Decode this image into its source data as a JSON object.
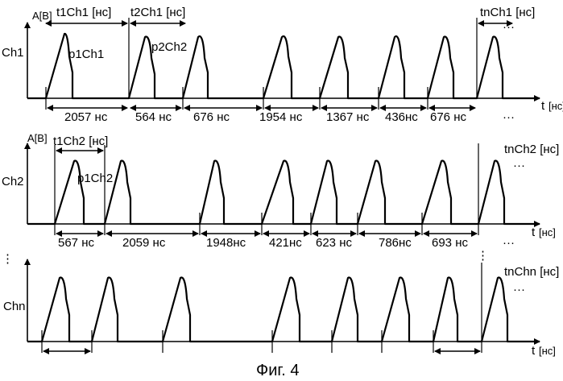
{
  "figure": {
    "caption": "Фиг. 4",
    "ellipsis": "···",
    "vertical_dots": "⋮"
  },
  "channels": [
    {
      "name": "Ch1",
      "y_axis_label": "A[В]",
      "x_axis_label": "t",
      "x_axis_unit": "[нс]",
      "pulse_labels": [
        "p1Ch1",
        "p2Ch2"
      ],
      "period_labels": [
        "t1Ch1 [нс]",
        "t2Ch1 [нс]",
        "tnCh1 [нс]"
      ],
      "intervals": [
        "2057 нс",
        "564 нс",
        "676 нс",
        "1954 нс",
        "1367 нс",
        "436нс",
        "676 нс"
      ]
    },
    {
      "name": "Ch2",
      "y_axis_label": "A[В]",
      "x_axis_label": "t",
      "x_axis_unit": "[нс]",
      "pulse_labels": [
        "p1Ch2"
      ],
      "period_labels": [
        "t1Ch2 [нс]",
        "tnCh2 [нс]"
      ],
      "intervals": [
        "567 нс",
        "2059 нс",
        "1948нс",
        "421нс",
        "623 нс",
        "786нс",
        "693 нс"
      ]
    },
    {
      "name": "Chn",
      "x_axis_label": "t",
      "x_axis_unit": "[нс]",
      "period_labels": [
        "tnChn [нс]"
      ],
      "intervals": []
    }
  ]
}
